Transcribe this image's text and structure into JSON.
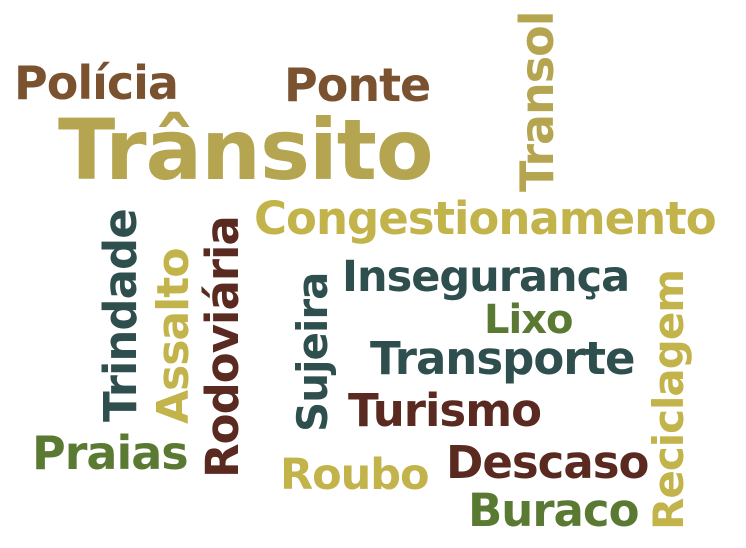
{
  "colors": {
    "brown": "#7a5230",
    "olive": "#b5a550",
    "dark_teal": "#2f4f4f",
    "green": "#5a7a34",
    "maroon": "#5a2a20",
    "khaki": "#c2b34a"
  },
  "words": {
    "policia": "Polícia",
    "ponte": "Ponte",
    "transito": "Trânsito",
    "transol": "Transol",
    "congestionamento": "Congestionamento",
    "trindade": "Trindade",
    "assalto": "Assalto",
    "rodoviaria": "Rodoviária",
    "sujeira": "Sujeira",
    "inseguranca": "Insegurança",
    "lixo": "Lixo",
    "reciclagem": "Reciclagem",
    "transporte": "Transporte",
    "turismo": "Turismo",
    "praias": "Praias",
    "roubo": "Roubo",
    "descaso": "Descaso",
    "buraco": "Buraco"
  }
}
